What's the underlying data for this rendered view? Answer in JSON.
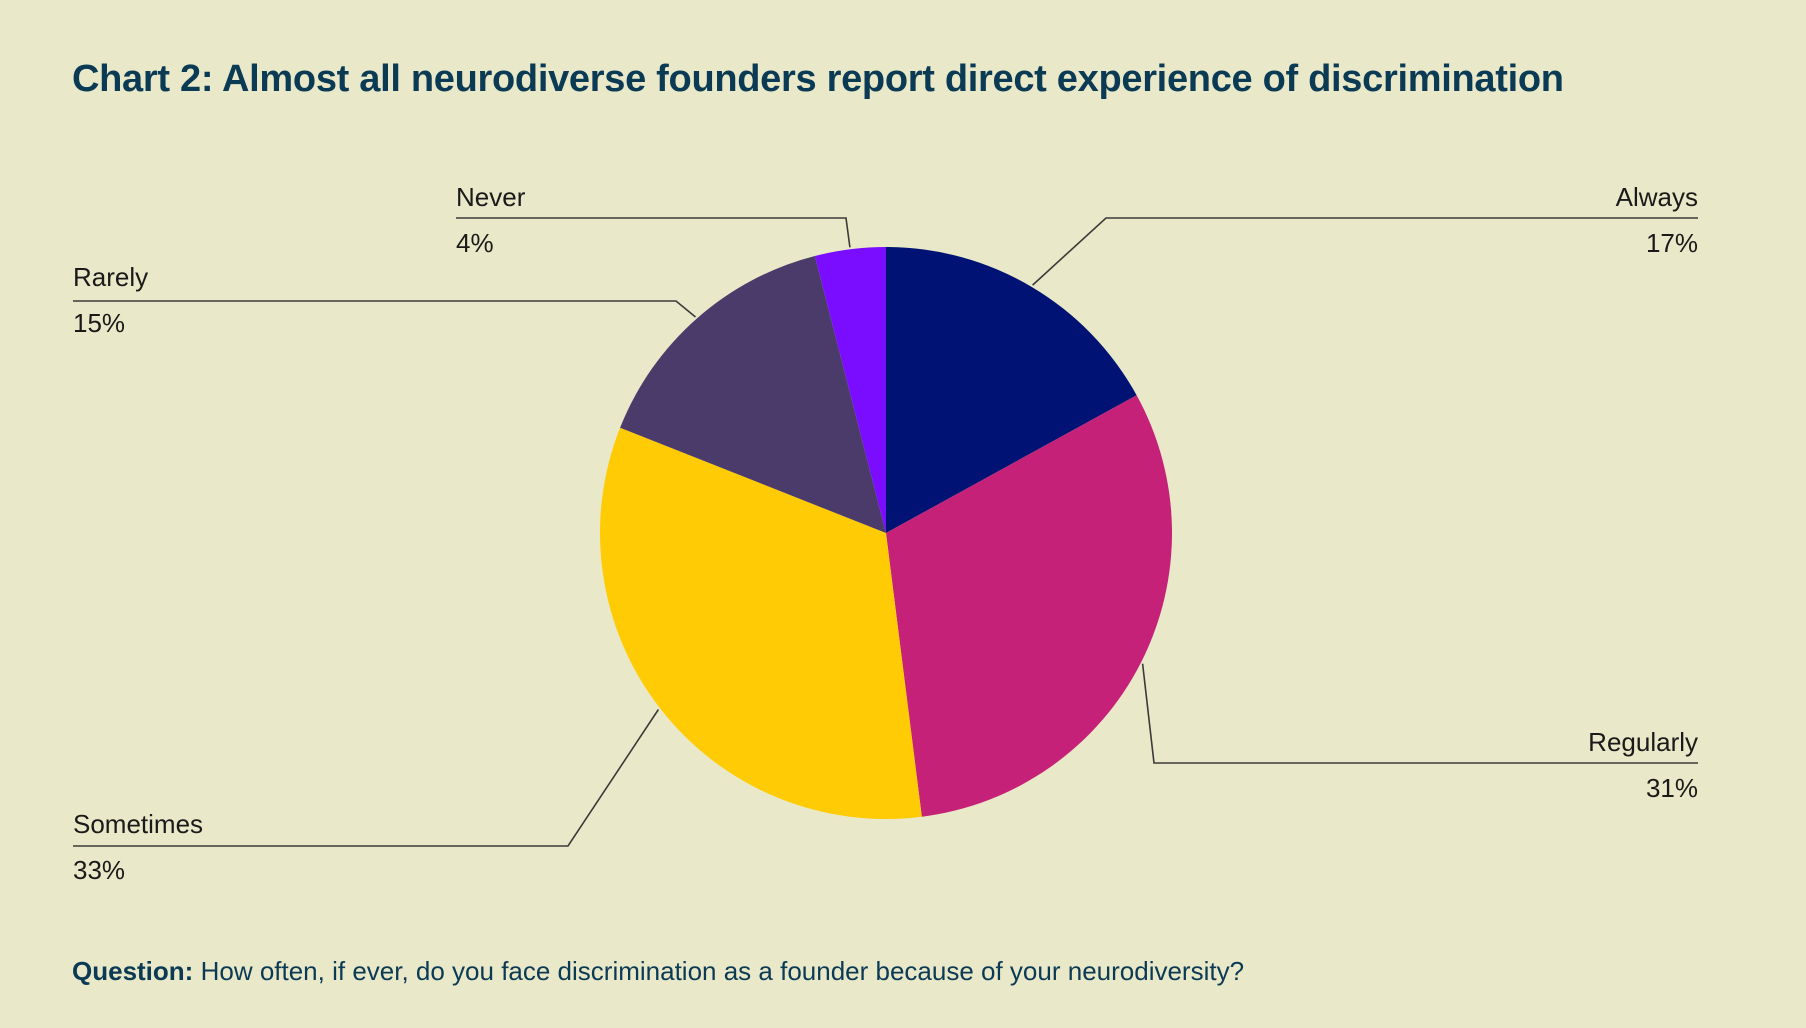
{
  "title": "Chart 2: Almost all neurodiverse founders report direct experience of discrimination",
  "question": {
    "label": "Question:",
    "text": "How often, if ever, do you face discrimination as a founder because of your neurodiversity?"
  },
  "chart_data": {
    "type": "pie",
    "start": "12 o'clock",
    "direction": "clockwise",
    "slices": [
      {
        "label": "Always",
        "value": 17,
        "display": "17%",
        "color": "#001374"
      },
      {
        "label": "Regularly",
        "value": 31,
        "display": "31%",
        "color": "#c62178"
      },
      {
        "label": "Sometimes",
        "value": 33,
        "display": "33%",
        "color": "#ffcb05"
      },
      {
        "label": "Rarely",
        "value": 15,
        "display": "15%",
        "color": "#4b3b6a"
      },
      {
        "label": "Never",
        "value": 4,
        "display": "4%",
        "color": "#7a0cff"
      }
    ]
  },
  "colors": {
    "background": "#e9e8c8",
    "title": "#0b3a55",
    "leader_line": "#3a3a3a"
  }
}
